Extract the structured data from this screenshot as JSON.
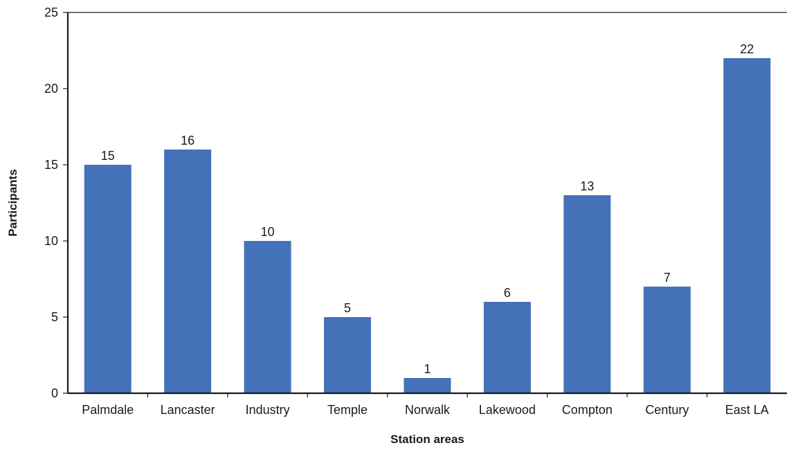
{
  "chart_data": {
    "type": "bar",
    "title": "",
    "xlabel": "Station areas",
    "ylabel": "Participants",
    "categories": [
      "Palmdale",
      "Lancaster",
      "Industry",
      "Temple",
      "Norwalk",
      "Lakewood",
      "Compton",
      "Century",
      "East LA"
    ],
    "values": [
      15,
      16,
      10,
      5,
      1,
      6,
      13,
      7,
      22
    ],
    "ylim": [
      0,
      25
    ],
    "yticks": [
      0,
      5,
      10,
      15,
      20,
      25
    ],
    "grid": false,
    "legend": "none",
    "bar_color": "#4472b8",
    "axis_color": "#1a1a1a"
  }
}
